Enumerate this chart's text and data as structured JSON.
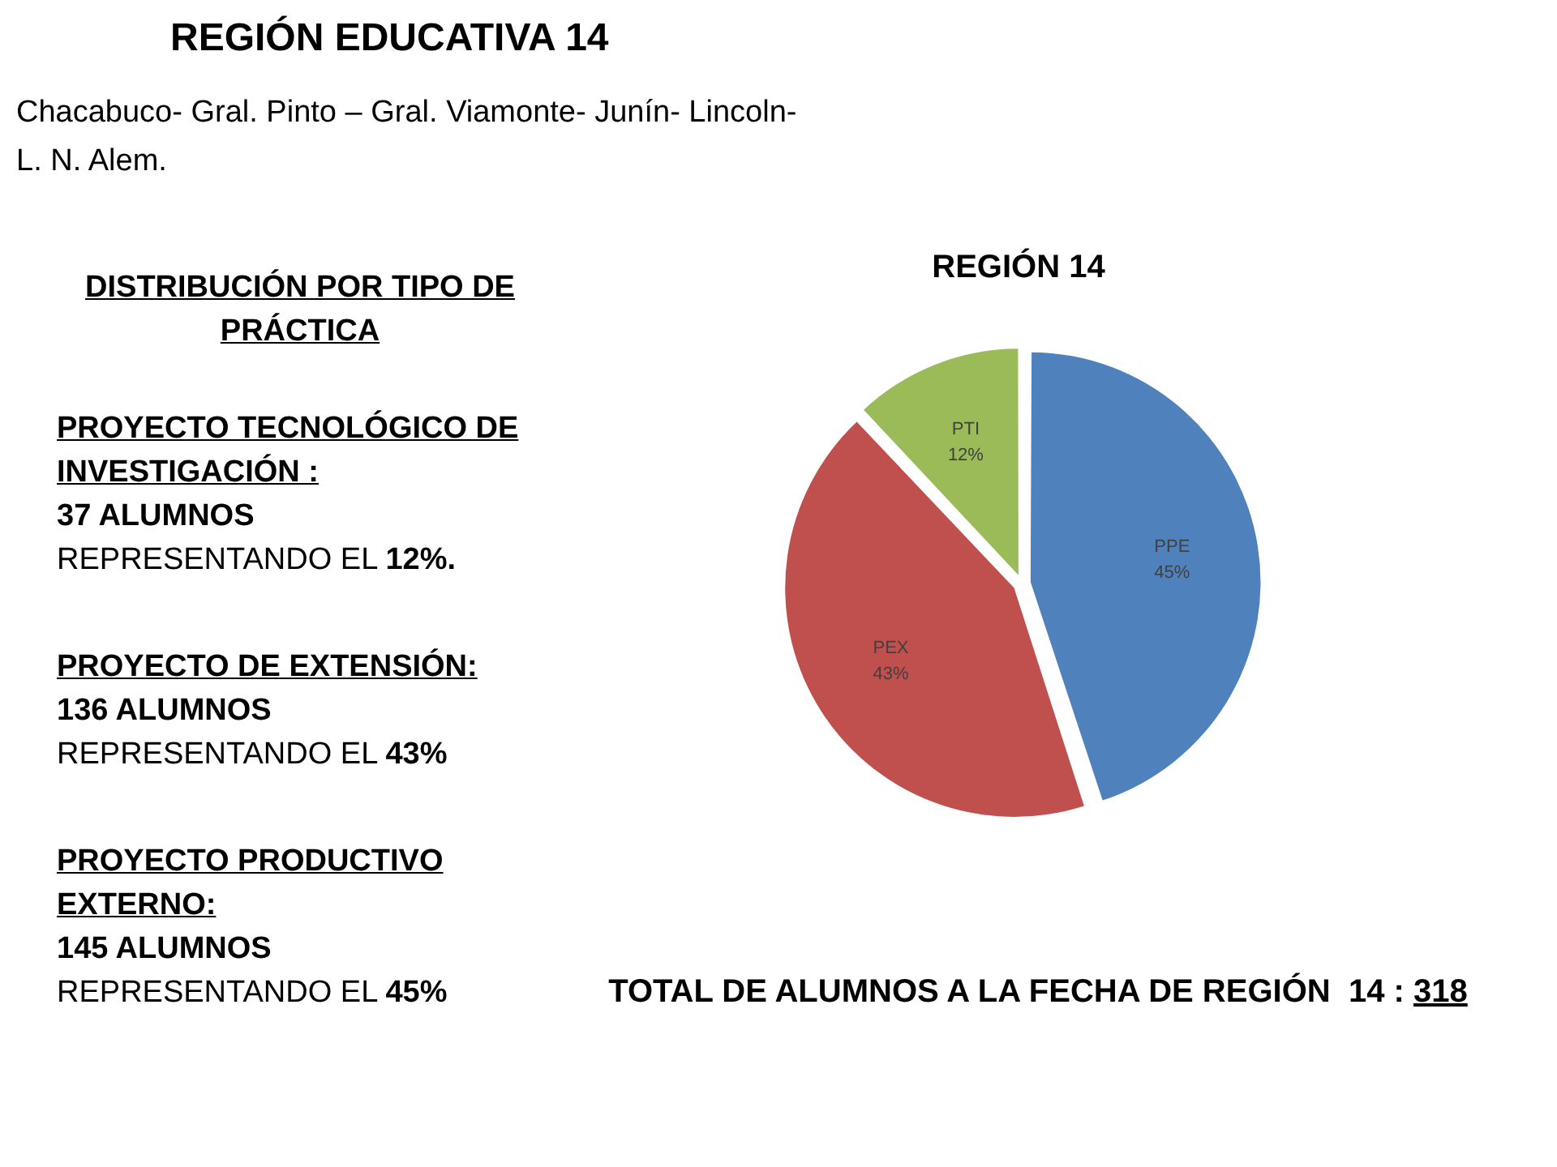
{
  "chart_data": {
    "type": "pie",
    "title": "REGIÓN EDUCATIVA 14",
    "subtitle": "Chacabuco- Gral. Pinto – Gral. Viamonte- Junín- Lincoln- L. N. Alem.",
    "categories": [
      "PPE",
      "PEX",
      "PTI"
    ],
    "values": [
      45,
      43,
      12
    ],
    "colors": [
      "#4f81bd",
      "#c0504d",
      "#9bbb59"
    ],
    "value_labels": [
      "45%",
      "43%",
      "12%"
    ],
    "annotations": [
      "REGIÓN 14",
      "DISTRIBUCIÓN POR TIPO DE PRÁCTICA",
      "PROYECTO TECNOLÓGICO DE INVESTIGACIÓN :",
      "37 ALUMNOS",
      "REPRESENTANDO EL 12%.",
      "PROYECTO DE EXTENSIÓN:",
      "136 ALUMNOS",
      "REPRESENTANDO EL 43%",
      "PROYECTO PRODUCTIVO EXTERNO:",
      "145 ALUMNOS",
      "REPRESENTANDO EL 45%",
      "TOTAL DE ALUMNOS A LA FECHA DE REGIÓN  14 : 318"
    ]
  }
}
